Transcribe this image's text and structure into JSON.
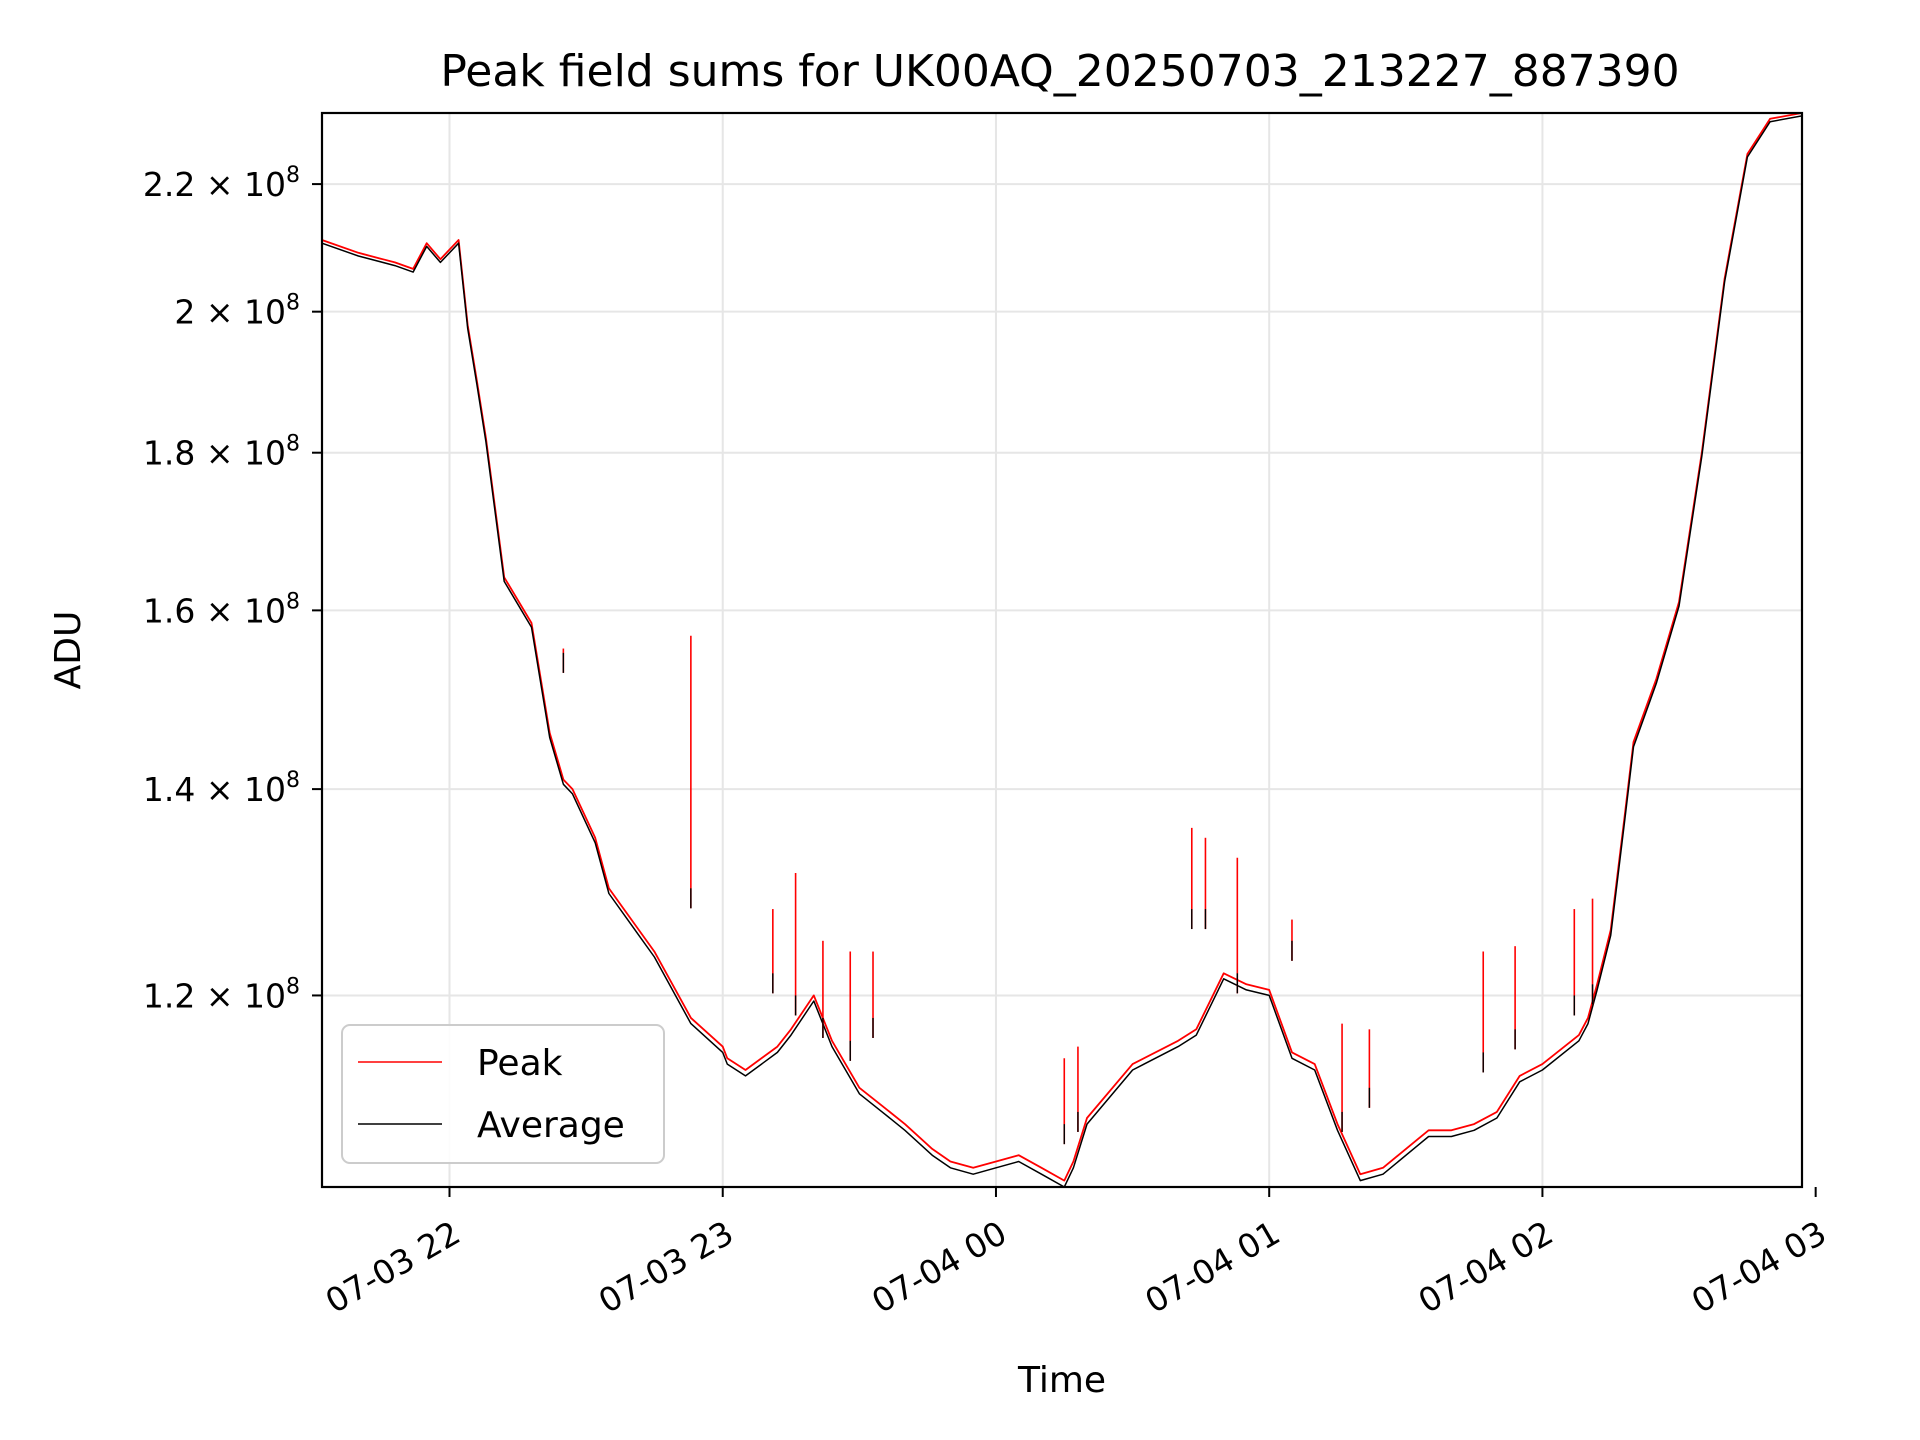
{
  "chart_data": {
    "type": "line",
    "title": "Peak field sums for UK00AQ_20250703_213227_887390",
    "xlabel": "Time",
    "ylabel": "ADU",
    "yscale": "log",
    "grid": true,
    "legend_position": "lower-left",
    "xlim": [
      "2025-07-03 21:32",
      "2025-07-04 02:57"
    ],
    "ylim": [
      104000000,
      232000000
    ],
    "x_ticks": [
      {
        "value": "2025-07-03 22:00",
        "label": "07-03 22"
      },
      {
        "value": "2025-07-03 23:00",
        "label": "07-03 23"
      },
      {
        "value": "2025-07-04 00:00",
        "label": "07-04 00"
      },
      {
        "value": "2025-07-04 01:00",
        "label": "07-04 01"
      },
      {
        "value": "2025-07-04 02:00",
        "label": "07-04 02"
      },
      {
        "value": "2025-07-04 03:00",
        "label": "07-04 03"
      }
    ],
    "y_ticks": [
      {
        "value": 120000000,
        "mantissa": "1.2",
        "exponent": "8"
      },
      {
        "value": 140000000,
        "mantissa": "1.4",
        "exponent": "8"
      },
      {
        "value": 160000000,
        "mantissa": "1.6",
        "exponent": "8"
      },
      {
        "value": 180000000,
        "mantissa": "1.8",
        "exponent": "8"
      },
      {
        "value": 200000000,
        "mantissa": "2",
        "exponent": "8"
      },
      {
        "value": 220000000,
        "mantissa": "2.2",
        "exponent": "8"
      }
    ],
    "x": [
      "2025-07-03 21:32",
      "2025-07-03 21:40",
      "2025-07-03 21:48",
      "2025-07-03 21:52",
      "2025-07-03 21:55",
      "2025-07-03 21:58",
      "2025-07-03 22:02",
      "2025-07-03 22:04",
      "2025-07-03 22:06",
      "2025-07-03 22:08",
      "2025-07-03 22:12",
      "2025-07-03 22:18",
      "2025-07-03 22:22",
      "2025-07-03 22:25",
      "2025-07-03 22:27",
      "2025-07-03 22:32",
      "2025-07-03 22:35",
      "2025-07-03 22:45",
      "2025-07-03 22:53",
      "2025-07-03 23:00",
      "2025-07-03 23:01",
      "2025-07-03 23:05",
      "2025-07-03 23:12",
      "2025-07-03 23:15",
      "2025-07-03 23:20",
      "2025-07-03 23:24",
      "2025-07-03 23:30",
      "2025-07-03 23:35",
      "2025-07-03 23:40",
      "2025-07-03 23:46",
      "2025-07-03 23:50",
      "2025-07-03 23:55",
      "2025-07-04 00:00",
      "2025-07-04 00:05",
      "2025-07-04 00:10",
      "2025-07-04 00:15",
      "2025-07-04 00:17",
      "2025-07-04 00:20",
      "2025-07-04 00:30",
      "2025-07-04 00:40",
      "2025-07-04 00:44",
      "2025-07-04 00:50",
      "2025-07-04 00:55",
      "2025-07-04 01:00",
      "2025-07-04 01:05",
      "2025-07-04 01:10",
      "2025-07-04 01:15",
      "2025-07-04 01:20",
      "2025-07-04 01:25",
      "2025-07-04 01:35",
      "2025-07-04 01:40",
      "2025-07-04 01:45",
      "2025-07-04 01:50",
      "2025-07-04 01:55",
      "2025-07-04 02:00",
      "2025-07-04 02:08",
      "2025-07-04 02:10",
      "2025-07-04 02:12",
      "2025-07-04 02:15",
      "2025-07-04 02:18",
      "2025-07-04 02:20",
      "2025-07-04 02:25",
      "2025-07-04 02:30",
      "2025-07-04 02:35",
      "2025-07-04 02:40",
      "2025-07-04 02:45",
      "2025-07-04 02:50",
      "2025-07-04 02:57"
    ],
    "series": [
      {
        "name": "Peak",
        "color": "#ff0000",
        "values": [
          211000000,
          209000000,
          207500000,
          206500000,
          210500000,
          208000000,
          211000000,
          198000000,
          190000000,
          182000000,
          164000000,
          158500000,
          146000000,
          141000000,
          140000000,
          135000000,
          130000000,
          124000000,
          118000000,
          115500000,
          114500000,
          113500000,
          115500000,
          117000000,
          120000000,
          116000000,
          112000000,
          110500000,
          109000000,
          107000000,
          106000000,
          105500000,
          106000000,
          106500000,
          105500000,
          104500000,
          106000000,
          109500000,
          114000000,
          116000000,
          117000000,
          122000000,
          121000000,
          120500000,
          115000000,
          114000000,
          109000000,
          105000000,
          105500000,
          108500000,
          108500000,
          109000000,
          110000000,
          113000000,
          114000000,
          116500000,
          118000000,
          121000000,
          126000000,
          137000000,
          145000000,
          152000000,
          161000000,
          180000000,
          205000000,
          225000000,
          231000000,
          232000000
        ]
      },
      {
        "name": "Average",
        "color": "#000000",
        "values": [
          210500000,
          208500000,
          207000000,
          206000000,
          210000000,
          207500000,
          210500000,
          197500000,
          189500000,
          181500000,
          163500000,
          158000000,
          145500000,
          140500000,
          139500000,
          134500000,
          129500000,
          123500000,
          117500000,
          115000000,
          114000000,
          113000000,
          115000000,
          116500000,
          119500000,
          115500000,
          111500000,
          110000000,
          108500000,
          106500000,
          105500000,
          105000000,
          105500000,
          106000000,
          105000000,
          104000000,
          105500000,
          109000000,
          113500000,
          115500000,
          116500000,
          121500000,
          120500000,
          120000000,
          114500000,
          113500000,
          108500000,
          104500000,
          105000000,
          108000000,
          108000000,
          108500000,
          109500000,
          112500000,
          113500000,
          116000000,
          117500000,
          120500000,
          125500000,
          136500000,
          144500000,
          151500000,
          160500000,
          179500000,
          204500000,
          224500000,
          230500000,
          231500000
        ]
      }
    ],
    "spikes": [
      {
        "x": "2025-07-03 22:25",
        "peak": 155500000,
        "average": 155000000
      },
      {
        "x": "2025-07-03 22:53",
        "peak": 157000000,
        "average": 130000000
      },
      {
        "x": "2025-07-03 23:11",
        "peak": 128000000,
        "average": 122000000
      },
      {
        "x": "2025-07-03 23:16",
        "peak": 131500000,
        "average": 120000000
      },
      {
        "x": "2025-07-03 23:22",
        "peak": 125000000,
        "average": 118000000
      },
      {
        "x": "2025-07-03 23:28",
        "peak": 124000000,
        "average": 116000000
      },
      {
        "x": "2025-07-03 23:33",
        "peak": 124000000,
        "average": 118000000
      },
      {
        "x": "2025-07-04 00:15",
        "peak": 114500000,
        "average": 109000000
      },
      {
        "x": "2025-07-04 00:18",
        "peak": 115500000,
        "average": 110000000
      },
      {
        "x": "2025-07-04 00:43",
        "peak": 136000000,
        "average": 128000000
      },
      {
        "x": "2025-07-04 00:46",
        "peak": 135000000,
        "average": 128000000
      },
      {
        "x": "2025-07-04 00:53",
        "peak": 133000000,
        "average": 122000000
      },
      {
        "x": "2025-07-04 01:05",
        "peak": 127000000,
        "average": 125000000
      },
      {
        "x": "2025-07-04 01:16",
        "peak": 117500000,
        "average": 110000000
      },
      {
        "x": "2025-07-04 01:22",
        "peak": 117000000,
        "average": 112000000
      },
      {
        "x": "2025-07-04 01:47",
        "peak": 124000000,
        "average": 115000000
      },
      {
        "x": "2025-07-04 01:54",
        "peak": 124500000,
        "average": 117000000
      },
      {
        "x": "2025-07-04 02:07",
        "peak": 128000000,
        "average": 120000000
      },
      {
        "x": "2025-07-04 02:11",
        "peak": 129000000,
        "average": 121000000
      }
    ]
  }
}
